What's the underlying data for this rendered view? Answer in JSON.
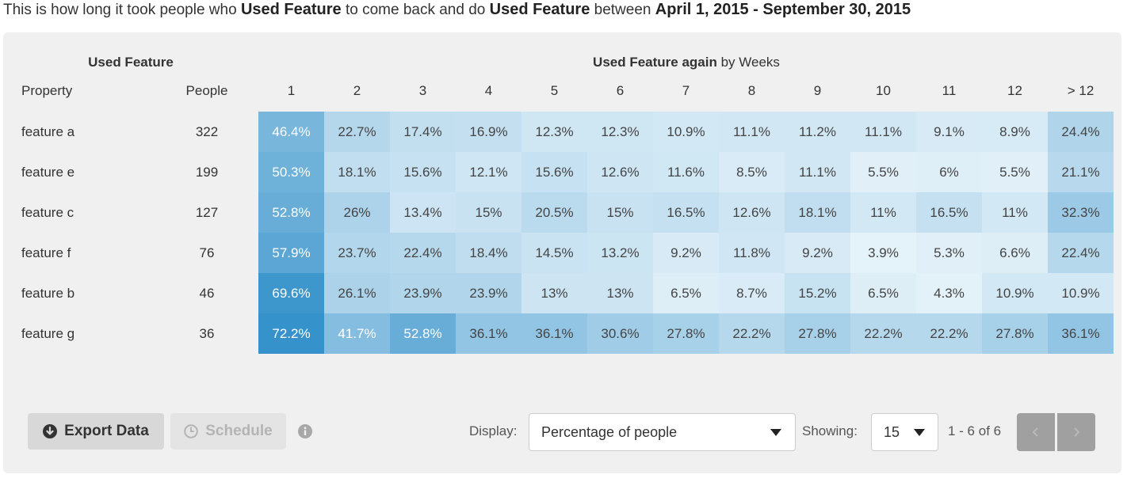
{
  "summary": {
    "p1": "This is how long it took people who ",
    "event1": "Used Feature",
    "p2": " to come back and do ",
    "event2": "Used Feature",
    "p3": " between ",
    "range": "April 1, 2015 - September 30, 2015"
  },
  "table": {
    "group_left": "Used Feature",
    "group_right_bold": "Used Feature again",
    "group_right_rest": " by Weeks",
    "col_property": "Property",
    "col_people": "People",
    "weeks": [
      "1",
      "2",
      "3",
      "4",
      "5",
      "6",
      "7",
      "8",
      "9",
      "10",
      "11",
      "12",
      "> 12"
    ],
    "rows": [
      {
        "name": "feature a",
        "people": "322",
        "values": [
          "46.4%",
          "22.7%",
          "17.4%",
          "16.9%",
          "12.3%",
          "12.3%",
          "10.9%",
          "11.1%",
          "11.2%",
          "11.1%",
          "9.1%",
          "8.9%",
          "24.4%"
        ]
      },
      {
        "name": "feature e",
        "people": "199",
        "values": [
          "50.3%",
          "18.1%",
          "15.6%",
          "12.1%",
          "15.6%",
          "12.6%",
          "11.6%",
          "8.5%",
          "11.1%",
          "5.5%",
          "6%",
          "5.5%",
          "21.1%"
        ]
      },
      {
        "name": "feature c",
        "people": "127",
        "values": [
          "52.8%",
          "26%",
          "13.4%",
          "15%",
          "20.5%",
          "15%",
          "16.5%",
          "12.6%",
          "18.1%",
          "11%",
          "16.5%",
          "11%",
          "32.3%"
        ]
      },
      {
        "name": "feature f",
        "people": "76",
        "values": [
          "57.9%",
          "23.7%",
          "22.4%",
          "18.4%",
          "14.5%",
          "13.2%",
          "9.2%",
          "11.8%",
          "9.2%",
          "3.9%",
          "5.3%",
          "6.6%",
          "22.4%"
        ]
      },
      {
        "name": "feature b",
        "people": "46",
        "values": [
          "69.6%",
          "26.1%",
          "23.9%",
          "23.9%",
          "13%",
          "13%",
          "6.5%",
          "8.7%",
          "15.2%",
          "6.5%",
          "4.3%",
          "10.9%",
          "10.9%"
        ]
      },
      {
        "name": "feature g",
        "people": "36",
        "values": [
          "72.2%",
          "41.7%",
          "52.8%",
          "36.1%",
          "36.1%",
          "30.6%",
          "27.8%",
          "22.2%",
          "27.8%",
          "22.2%",
          "22.2%",
          "27.8%",
          "36.1%"
        ]
      }
    ]
  },
  "footer": {
    "export_label": "Export Data",
    "schedule_label": "Schedule",
    "display_label": "Display:",
    "display_value": "Percentage of people",
    "showing_label": "Showing:",
    "showing_value": "15",
    "range_text": "1 - 6 of 6"
  },
  "colors": {
    "heat_light": "#eef7fc",
    "heat_dark": "#2f8ec8",
    "panel_bg": "#f0f0f0",
    "pager_bg": "#a0a0a0"
  },
  "icons": {
    "export": "circle-down-arrow-icon",
    "schedule": "clock-icon",
    "info": "info-icon",
    "prev": "chevron-left-icon",
    "next": "chevron-right-icon",
    "dropdown": "caret-down-icon"
  }
}
